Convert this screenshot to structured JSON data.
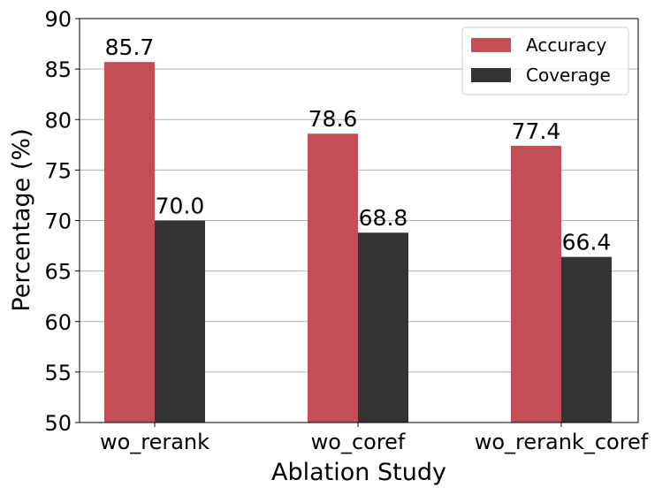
{
  "chart_data": {
    "type": "bar",
    "title": "",
    "xlabel": "Ablation Study",
    "ylabel": "Percentage (%)",
    "categories": [
      "wo_rerank",
      "wo_coref",
      "wo_rerank_coref"
    ],
    "series": [
      {
        "name": "Accuracy",
        "values": [
          85.7,
          78.6,
          77.4
        ],
        "color": "#c44e58"
      },
      {
        "name": "Coverage",
        "values": [
          70.0,
          68.8,
          66.4
        ],
        "color": "#333333"
      }
    ],
    "data_labels": [
      [
        "85.7",
        "78.6",
        "77.4"
      ],
      [
        "70.0",
        "68.8",
        "66.4"
      ]
    ],
    "ylim": [
      50,
      90
    ],
    "yticks": [
      50,
      55,
      60,
      65,
      70,
      75,
      80,
      85,
      90
    ],
    "grid": "y",
    "legend": "top-right"
  }
}
